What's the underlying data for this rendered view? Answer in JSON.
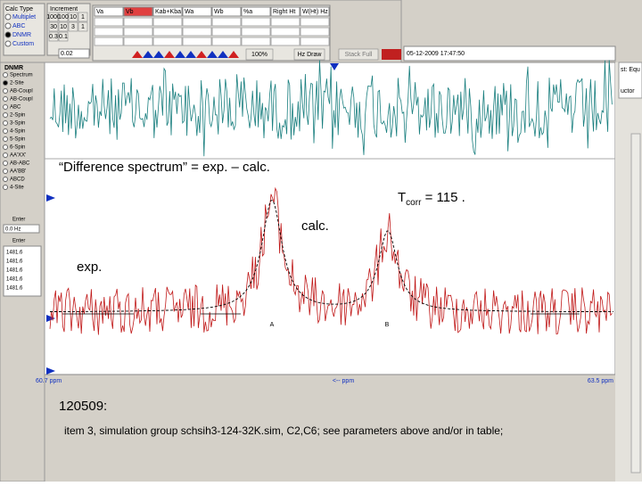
{
  "toolbar": {
    "calc_type": {
      "title": "Calc Type",
      "options": [
        "Multiplet",
        "ABC",
        "DNMR",
        "Custom"
      ]
    },
    "increment": {
      "title": "Increment",
      "buttons": [
        "1000",
        "100",
        "10",
        "1",
        "30",
        "10",
        "3",
        "1",
        "0.3",
        "0.1"
      ],
      "value": "0.02"
    },
    "params": {
      "headers": [
        "Va",
        "Vb",
        "Kab+Kba",
        "Wa",
        "Wb",
        "%a",
        "Right Ht",
        "W(Ht) Hz"
      ]
    },
    "zoom": "100%",
    "draw_button": "Hz Draw",
    "stack_button": "Stack Full",
    "date": "05-12-2009  17:47:50"
  },
  "left_panel": {
    "title": "DNMR",
    "items": [
      "Spectrum",
      "2-Site",
      "AB-Coupl",
      "AB-Coupl",
      "ABC",
      "2-Spin",
      "3-Spin",
      "4-Spin",
      "5-Spin",
      "6-Spin",
      "AA'XX'",
      "AB-ABC",
      "AA'BB'",
      "ABCD",
      "4-Site"
    ],
    "enter_label": "Enter",
    "hz_value": "0.0 Hz",
    "enter_label2": "Enter",
    "shifts": [
      "1481.6",
      "1481.6",
      "1481.6",
      "1481.6",
      "1481.6"
    ]
  },
  "spectrum": {
    "difference_label": "“Difference spectrum” = exp. – calc.",
    "tcorr_prefix": "T",
    "tcorr_sub": "corr",
    "tcorr_value": " = 115 .",
    "calc_label": "calc.",
    "exp_label": "exp.",
    "peak_a": "A",
    "peak_b": "B",
    "axis_left": "60.7 ppm",
    "axis_mid": "<-- ppm",
    "axis_right": "63.5 ppm"
  },
  "right_panel": {
    "line1": "st: Equ",
    "line2": "uctor"
  },
  "footer": {
    "heading": "120509:",
    "note": "item 3, simulation group schsih3-124-32K.sim,  C2,C6; see parameters above and/or in table;"
  }
}
